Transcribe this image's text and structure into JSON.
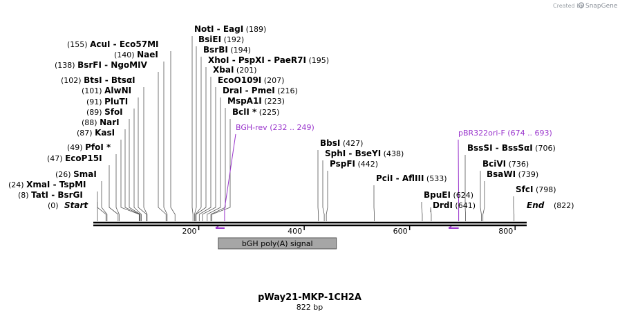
{
  "header": {
    "watermark_prefix": "Created by",
    "watermark_brand": "SnapGene"
  },
  "map": {
    "name": "pWay21-MKP-1CH2A",
    "length_label": "822 bp",
    "length": 822,
    "start_label": "Start",
    "start_pos": "(0)",
    "end_label": "End",
    "end_pos": "(822)",
    "ticks": [
      200,
      400,
      600,
      800
    ],
    "tick_labels": [
      "200",
      "400",
      "600",
      "800"
    ],
    "colors": {
      "backbone": "#000000",
      "primer": "#9933cc",
      "feature_fill": "#a6a6a6",
      "feature_stroke": "#555555",
      "site_line": "#555555"
    }
  },
  "sites": [
    {
      "pos": 8,
      "names": [
        "TatI",
        "BsrGI"
      ],
      "pos_label": "(8)"
    },
    {
      "pos": 24,
      "names": [
        "XmaI",
        "TspMI"
      ],
      "pos_label": "(24)"
    },
    {
      "pos": 26,
      "names": [
        "SmaI"
      ],
      "pos_label": "(26)"
    },
    {
      "pos": 47,
      "names": [
        "EcoP15I"
      ],
      "pos_label": "(47)"
    },
    {
      "pos": 49,
      "names": [
        "PfoI *"
      ],
      "pos_label": "(49)"
    },
    {
      "pos": 87,
      "names": [
        "KasI"
      ],
      "pos_label": "(87)"
    },
    {
      "pos": 88,
      "names": [
        "NarI"
      ],
      "pos_label": "(88)"
    },
    {
      "pos": 89,
      "names": [
        "SfoI"
      ],
      "pos_label": "(89)"
    },
    {
      "pos": 91,
      "names": [
        "PluTI"
      ],
      "pos_label": "(91)"
    },
    {
      "pos": 101,
      "names": [
        "AlwNI"
      ],
      "pos_label": "(101)"
    },
    {
      "pos": 102,
      "names": [
        "BtsI",
        "BtsαI"
      ],
      "pos_label": "(102)"
    },
    {
      "pos": 138,
      "names": [
        "BsrFI",
        "NgoMIV"
      ],
      "pos_label": "(138)"
    },
    {
      "pos": 140,
      "names": [
        "NaeI"
      ],
      "pos_label": "(140)"
    },
    {
      "pos": 155,
      "names": [
        "AcuI",
        "Eco57MI"
      ],
      "pos_label": "(155)"
    },
    {
      "pos": 189,
      "names": [
        "NotI",
        "EagI"
      ],
      "pos_label": "(189)"
    },
    {
      "pos": 192,
      "names": [
        "BsiEI"
      ],
      "pos_label": "(192)"
    },
    {
      "pos": 194,
      "names": [
        "BsrBI"
      ],
      "pos_label": "(194)"
    },
    {
      "pos": 195,
      "names": [
        "XhoI",
        "PspXI",
        "PaeR7I"
      ],
      "pos_label": "(195)"
    },
    {
      "pos": 201,
      "names": [
        "XbaI"
      ],
      "pos_label": "(201)"
    },
    {
      "pos": 207,
      "names": [
        "EcoO109I"
      ],
      "pos_label": "(207)"
    },
    {
      "pos": 216,
      "names": [
        "DraI",
        "PmeI"
      ],
      "pos_label": "(216)"
    },
    {
      "pos": 223,
      "names": [
        "MspA1I"
      ],
      "pos_label": "(223)"
    },
    {
      "pos": 225,
      "names": [
        "BclI *"
      ],
      "pos_label": "(225)"
    },
    {
      "pos": 427,
      "names": [
        "BbsI"
      ],
      "pos_label": "(427)"
    },
    {
      "pos": 438,
      "names": [
        "SphI",
        "BseYI"
      ],
      "pos_label": "(438)"
    },
    {
      "pos": 442,
      "names": [
        "PspFI"
      ],
      "pos_label": "(442)"
    },
    {
      "pos": 533,
      "names": [
        "PciI",
        "AflIII"
      ],
      "pos_label": "(533)"
    },
    {
      "pos": 624,
      "names": [
        "BpuEI"
      ],
      "pos_label": "(624)"
    },
    {
      "pos": 641,
      "names": [
        "DrdI"
      ],
      "pos_label": "(641)"
    },
    {
      "pos": 706,
      "names": [
        "BssSI",
        "BssSαI"
      ],
      "pos_label": "(706)"
    },
    {
      "pos": 736,
      "names": [
        "BciVI"
      ],
      "pos_label": "(736)"
    },
    {
      "pos": 739,
      "names": [
        "BsaWI"
      ],
      "pos_label": "(739)"
    },
    {
      "pos": 798,
      "names": [
        "SfcI"
      ],
      "pos_label": "(798)"
    }
  ],
  "primers": [
    {
      "name": "BGH-rev",
      "range_label": "(232 .. 249)",
      "start": 232,
      "end": 249
    },
    {
      "name": "pBR322ori-F",
      "range_label": "(674 .. 693)",
      "start": 674,
      "end": 693
    }
  ],
  "features": [
    {
      "name": "bGH poly(A) signal",
      "start": 237,
      "end": 461
    }
  ]
}
